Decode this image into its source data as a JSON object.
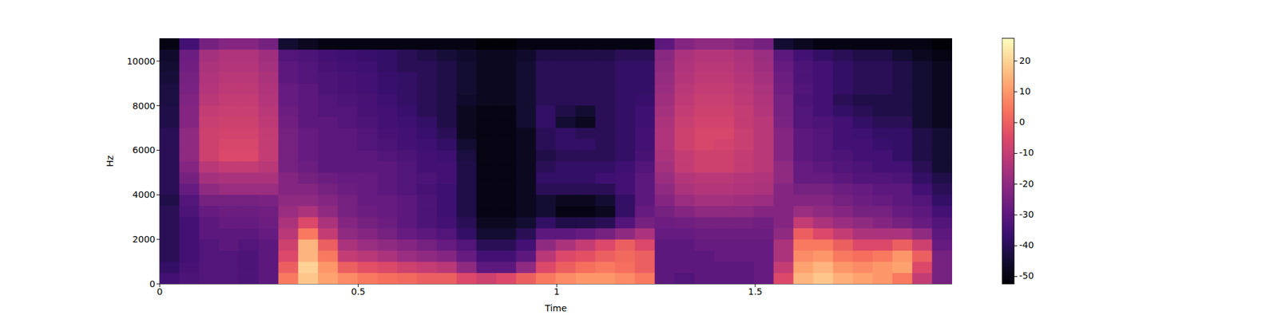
{
  "chart_data": {
    "type": "heatmap",
    "xlabel": "Time",
    "ylabel": "Hz",
    "xlim": [
      0,
      1.996
    ],
    "xticks": [
      0,
      0.5,
      1,
      1.5
    ],
    "ylim": [
      0,
      11025
    ],
    "yticks": [
      0,
      2000,
      4000,
      6000,
      8000,
      10000
    ],
    "colorbar": {
      "lim": [
        -52.4,
        27.4
      ],
      "ticks": [
        -50,
        -40,
        -30,
        -20,
        -10,
        0,
        10,
        20
      ]
    },
    "cells": [
      [
        -35,
        -33,
        -32,
        -32,
        -33,
        -30,
        5,
        18,
        12,
        8,
        5,
        3,
        2,
        0,
        0,
        -5,
        -8,
        -5,
        0,
        5,
        8,
        10,
        10,
        8,
        5,
        -30,
        -32,
        -30,
        -30,
        -30,
        -28,
        -5,
        15,
        18,
        14,
        12,
        10,
        5,
        -10,
        -25
      ],
      [
        -38,
        -34,
        -32,
        -32,
        -33,
        -30,
        0,
        20,
        10,
        0,
        -3,
        -5,
        -8,
        -10,
        -12,
        -20,
        -30,
        -30,
        -20,
        -5,
        0,
        3,
        5,
        3,
        0,
        -30,
        -30,
        -30,
        -30,
        -30,
        -28,
        -10,
        12,
        15,
        10,
        8,
        10,
        12,
        -5,
        -25
      ],
      [
        -40,
        -35,
        -32,
        -32,
        -33,
        -30,
        -5,
        15,
        5,
        -10,
        -12,
        -15,
        -18,
        -20,
        -22,
        -28,
        -35,
        -35,
        -30,
        -12,
        -5,
        -3,
        0,
        2,
        0,
        -30,
        -30,
        -30,
        -28,
        -28,
        -28,
        -15,
        8,
        10,
        5,
        3,
        5,
        10,
        0,
        -25
      ],
      [
        -40,
        -35,
        -32,
        -30,
        -32,
        -30,
        -8,
        15,
        0,
        -15,
        -18,
        -20,
        -22,
        -25,
        -28,
        -32,
        -40,
        -40,
        -35,
        -20,
        -15,
        -10,
        -5,
        0,
        -5,
        -30,
        -30,
        -28,
        -28,
        -28,
        -28,
        -15,
        5,
        5,
        0,
        -5,
        -5,
        0,
        -8,
        -28
      ],
      [
        -40,
        -35,
        -30,
        -30,
        -30,
        -28,
        -12,
        5,
        -10,
        -20,
        -22,
        -25,
        -28,
        -30,
        -32,
        -38,
        -45,
        -45,
        -40,
        -30,
        -30,
        -28,
        -25,
        -20,
        -15,
        -28,
        -28,
        -27,
        -27,
        -27,
        -27,
        -20,
        0,
        -5,
        -10,
        -15,
        -15,
        -15,
        -20,
        -30
      ],
      [
        -40,
        -35,
        -30,
        -28,
        -28,
        -27,
        -15,
        -5,
        -15,
        -22,
        -25,
        -27,
        -30,
        -33,
        -35,
        -40,
        -48,
        -48,
        -45,
        -38,
        -42,
        -42,
        -40,
        -32,
        -25,
        -27,
        -26,
        -25,
        -25,
        -25,
        -26,
        -22,
        -10,
        -15,
        -18,
        -20,
        -22,
        -25,
        -28,
        -32
      ],
      [
        -40,
        -33,
        -28,
        -27,
        -27,
        -26,
        -18,
        -15,
        -20,
        -25,
        -27,
        -28,
        -30,
        -33,
        -36,
        -42,
        -50,
        -50,
        -48,
        -45,
        -50,
        -50,
        -48,
        -38,
        -28,
        -25,
        -22,
        -20,
        -20,
        -20,
        -22,
        -22,
        -18,
        -20,
        -22,
        -25,
        -25,
        -28,
        -30,
        -35
      ],
      [
        -42,
        -32,
        -25,
        -25,
        -25,
        -24,
        -20,
        -20,
        -22,
        -25,
        -28,
        -28,
        -30,
        -33,
        -36,
        -42,
        -50,
        -50,
        -48,
        -45,
        -48,
        -48,
        -45,
        -38,
        -30,
        -22,
        -18,
        -16,
        -16,
        -17,
        -18,
        -22,
        -22,
        -22,
        -25,
        -27,
        -28,
        -30,
        -32,
        -38
      ],
      [
        -40,
        -28,
        -20,
        -18,
        -18,
        -18,
        -22,
        -22,
        -25,
        -27,
        -28,
        -30,
        -32,
        -34,
        -36,
        -42,
        -50,
        -50,
        -48,
        -40,
        -40,
        -40,
        -40,
        -35,
        -30,
        -20,
        -15,
        -13,
        -13,
        -14,
        -15,
        -22,
        -25,
        -25,
        -27,
        -28,
        -30,
        -30,
        -35,
        -40
      ],
      [
        -40,
        -25,
        -16,
        -15,
        -15,
        -15,
        -22,
        -25,
        -27,
        -28,
        -28,
        -30,
        -32,
        -33,
        -35,
        -42,
        -50,
        -50,
        -48,
        -38,
        -38,
        -38,
        -36,
        -35,
        -30,
        -18,
        -13,
        -12,
        -12,
        -13,
        -14,
        -20,
        -28,
        -28,
        -30,
        -32,
        -32,
        -33,
        -38,
        -42
      ],
      [
        -40,
        -22,
        -12,
        -10,
        -10,
        -12,
        -25,
        -27,
        -30,
        -30,
        -30,
        -30,
        -32,
        -35,
        -35,
        -42,
        -50,
        -50,
        -48,
        -40,
        -38,
        -38,
        -38,
        -36,
        -32,
        -16,
        -10,
        -8,
        -8,
        -10,
        -12,
        -20,
        -28,
        -30,
        -32,
        -33,
        -35,
        -35,
        -40,
        -45
      ],
      [
        -40,
        -20,
        -8,
        -5,
        -5,
        -10,
        -25,
        -28,
        -30,
        -30,
        -30,
        -32,
        -33,
        -35,
        -36,
        -43,
        -50,
        -50,
        -48,
        -42,
        -40,
        -40,
        -40,
        -38,
        -34,
        -15,
        -10,
        -8,
        -8,
        -10,
        -12,
        -22,
        -30,
        -32,
        -33,
        -35,
        -35,
        -38,
        -42,
        -45
      ],
      [
        -40,
        -20,
        -8,
        -6,
        -6,
        -10,
        -25,
        -28,
        -30,
        -30,
        -32,
        -33,
        -35,
        -36,
        -38,
        -45,
        -50,
        -50,
        -48,
        -40,
        -38,
        -38,
        -40,
        -38,
        -35,
        -14,
        -8,
        -6,
        -7,
        -9,
        -12,
        -22,
        -30,
        -32,
        -35,
        -35,
        -37,
        -38,
        -42,
        -45
      ],
      [
        -40,
        -20,
        -8,
        -7,
        -7,
        -10,
        -25,
        -28,
        -30,
        -30,
        -32,
        -34,
        -35,
        -37,
        -40,
        -48,
        -50,
        -50,
        -48,
        -40,
        -38,
        -40,
        -40,
        -38,
        -35,
        -14,
        -8,
        -6,
        -6,
        -9,
        -12,
        -22,
        -30,
        -32,
        -35,
        -36,
        -38,
        -38,
        -42,
        -45
      ],
      [
        -42,
        -22,
        -9,
        -8,
        -8,
        -11,
        -26,
        -30,
        -30,
        -32,
        -33,
        -35,
        -36,
        -38,
        -42,
        -48,
        -50,
        -50,
        -45,
        -38,
        -45,
        -48,
        -40,
        -38,
        -36,
        -15,
        -9,
        -7,
        -7,
        -10,
        -12,
        -24,
        -32,
        -33,
        -35,
        -38,
        -40,
        -40,
        -45,
        -48
      ],
      [
        -42,
        -22,
        -10,
        -9,
        -9,
        -12,
        -27,
        -30,
        -32,
        -32,
        -34,
        -35,
        -37,
        -40,
        -42,
        -48,
        -50,
        -50,
        -45,
        -38,
        -42,
        -45,
        -40,
        -38,
        -36,
        -16,
        -10,
        -8,
        -8,
        -10,
        -13,
        -25,
        -32,
        -35,
        -38,
        -40,
        -42,
        -42,
        -45,
        -48
      ],
      [
        -43,
        -23,
        -12,
        -10,
        -10,
        -13,
        -28,
        -30,
        -32,
        -33,
        -34,
        -36,
        -38,
        -40,
        -42,
        -46,
        -48,
        -48,
        -45,
        -40,
        -40,
        -40,
        -40,
        -38,
        -37,
        -17,
        -11,
        -9,
        -9,
        -11,
        -14,
        -25,
        -33,
        -35,
        -40,
        -42,
        -42,
        -42,
        -45,
        -48
      ],
      [
        -43,
        -24,
        -13,
        -11,
        -11,
        -14,
        -28,
        -30,
        -33,
        -34,
        -35,
        -37,
        -38,
        -40,
        -42,
        -45,
        -48,
        -48,
        -45,
        -40,
        -40,
        -40,
        -40,
        -38,
        -38,
        -18,
        -12,
        -10,
        -10,
        -12,
        -15,
        -26,
        -32,
        -35,
        -38,
        -40,
        -40,
        -42,
        -45,
        -48
      ],
      [
        -44,
        -25,
        -14,
        -12,
        -12,
        -15,
        -30,
        -32,
        -33,
        -34,
        -35,
        -37,
        -38,
        -40,
        -42,
        -45,
        -48,
        -48,
        -45,
        -40,
        -40,
        -40,
        -40,
        -38,
        -38,
        -19,
        -13,
        -11,
        -11,
        -13,
        -16,
        -27,
        -33,
        -35,
        -38,
        -40,
        -40,
        -42,
        -45,
        -48
      ],
      [
        -45,
        -26,
        -15,
        -13,
        -13,
        -16,
        -30,
        -32,
        -34,
        -35,
        -36,
        -38,
        -40,
        -40,
        -42,
        -45,
        -48,
        -48,
        -45,
        -40,
        -40,
        -40,
        -40,
        -38,
        -38,
        -20,
        -14,
        -12,
        -12,
        -14,
        -17,
        -28,
        -33,
        -35,
        -38,
        -40,
        -40,
        -42,
        -45,
        -48
      ],
      [
        -46,
        -27,
        -16,
        -14,
        -14,
        -17,
        -32,
        -33,
        -35,
        -36,
        -37,
        -38,
        -40,
        -42,
        -44,
        -46,
        -48,
        -48,
        -46,
        -42,
        -42,
        -42,
        -42,
        -40,
        -40,
        -21,
        -15,
        -13,
        -13,
        -15,
        -18,
        -30,
        -35,
        -38,
        -40,
        -42,
        -42,
        -45,
        -48,
        -50
      ],
      [
        -50,
        -35,
        -25,
        -22,
        -22,
        -25,
        -45,
        -48,
        -50,
        -50,
        -50,
        -50,
        -50,
        -50,
        -50,
        -50,
        -52,
        -52,
        -50,
        -50,
        -50,
        -50,
        -50,
        -50,
        -50,
        -30,
        -22,
        -20,
        -20,
        -22,
        -25,
        -45,
        -48,
        -50,
        -50,
        -50,
        -50,
        -50,
        -50,
        -52
      ]
    ]
  }
}
